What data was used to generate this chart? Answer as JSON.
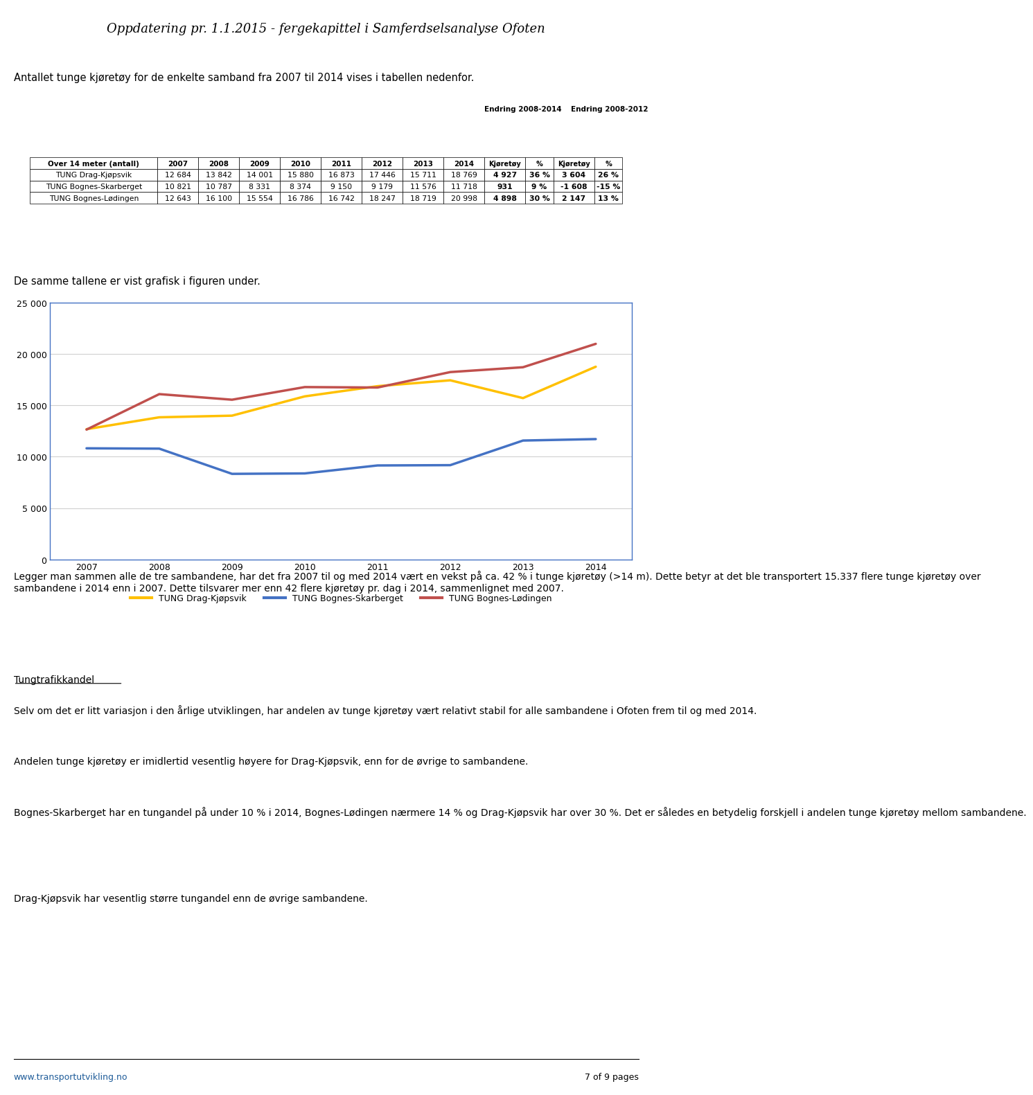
{
  "title": "Oppdatering pr. 1.1.2015 - fergekapittel i Samferdselsanalyse Ofoten",
  "intro_text": "Antallet tunge kjøretøy for de enkelte samband fra 2007 til 2014 vises i tabellen nedenfor.",
  "table_rows": [
    [
      "TUNG Drag-Kjøpsvik",
      "12 684",
      "13 842",
      "14 001",
      "15 880",
      "16 873",
      "17 446",
      "15 711",
      "18 769",
      "4 927",
      "36 %",
      "3 604",
      "26 %"
    ],
    [
      "TUNG Bognes-Skarberget",
      "10 821",
      "10 787",
      "8 331",
      "8 374",
      "9 150",
      "9 179",
      "11 576",
      "11 718",
      "931",
      "9 %",
      "-1 608",
      "-15 %"
    ],
    [
      "TUNG Bognes-Lødingen",
      "12 643",
      "16 100",
      "15 554",
      "16 786",
      "16 742",
      "18 247",
      "18 719",
      "20 998",
      "4 898",
      "30 %",
      "2 147",
      "13 %"
    ]
  ],
  "years": [
    2007,
    2008,
    2009,
    2010,
    2011,
    2012,
    2013,
    2014
  ],
  "series": {
    "TUNG Drag-Kjøpsvik": [
      12684,
      13842,
      14001,
      15880,
      16873,
      17446,
      15711,
      18769
    ],
    "TUNG Bognes-Skarberget": [
      10821,
      10787,
      8331,
      8374,
      9150,
      9179,
      11576,
      11718
    ],
    "TUNG Bognes-Lødingen": [
      12643,
      16100,
      15554,
      16786,
      16742,
      18247,
      18719,
      20998
    ]
  },
  "line_colors": {
    "TUNG Drag-Kjøpsvik": "#FFC000",
    "TUNG Bognes-Skarberget": "#4472C4",
    "TUNG Bognes-Lødingen": "#C0504D"
  },
  "chart_subtitle": "De samme tallene er vist grafisk i figuren under.",
  "ylim": [
    0,
    25000
  ],
  "yticks": [
    0,
    5000,
    10000,
    15000,
    20000,
    25000
  ],
  "body_para1": "Legger man sammen alle de tre sambandene, har det fra 2007 til og med 2014 vært en vekst på ca. 42 % i tunge kjøretøy (>14 m). Dette betyr at det ble transportert 15.337 flere tunge kjøretøy over sambandene i 2014 enn i 2007. Dette tilsvarer mer enn 42 flere kjøretøy pr. dag i 2014, sammenlignet med 2007.",
  "body_heading2": "Tungtrafikkandel",
  "body_para2": "Selv om det er litt variasjon i den årlige utviklingen, har andelen av tunge kjøretøy vært relativt stabil for alle sambandene i Ofoten frem til og med 2014.",
  "body_para3": "Andelen tunge kjøretøy er imidlertid vesentlig høyere for Drag-Kjøpsvik, enn for de øvrige to sambandene.",
  "body_para4": "Bognes-Skarberget har en tungandel på under 10 % i 2014, Bognes-Lødingen nærmere 14 % og Drag-Kjøpsvik har over 30 %. Det er således en betydelig forskjell i andelen tunge kjøretøy mellom sambandene.",
  "body_para5": "Drag-Kjøpsvik har vesentlig større tungandel enn de øvrige sambandene.",
  "footer_text": "www.transportutvikling.no",
  "footer_page": "7 of 9 pages",
  "bg_color": "#FFFFFF",
  "chart_border_color": "#4472C4",
  "grid_color": "#D0D0D0"
}
